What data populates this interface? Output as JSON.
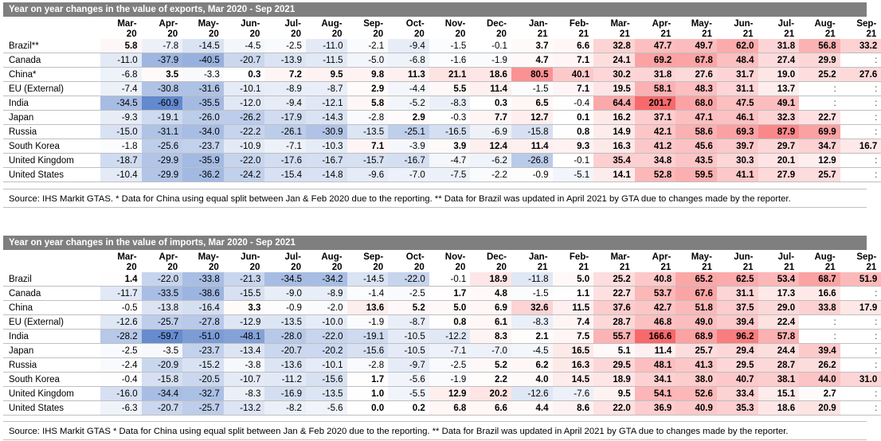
{
  "columns": [
    "Mar-\n20",
    "Apr-\n20",
    "May-\n20",
    "Jun-\n20",
    "Jul-\n20",
    "Aug-\n20",
    "Sep-\n20",
    "Oct-\n20",
    "Nov-\n20",
    "Dec-\n20",
    "Jan-\n21",
    "Feb-\n21",
    "Mar-\n21",
    "Apr-\n21",
    "May-\n21",
    "Jun-\n21",
    "Jul-\n21",
    "Aug-\n21",
    "Sep-\n21"
  ],
  "exports": {
    "title": "Year on year changes in the value of exports, Mar 2020 - Sep 2021",
    "source": "Source: IHS Markit GTAS. * Data for China using equal split between Jan & Feb 2020 due to the reporting. ** Data for Brazil was updated in April 2021 by GTA due to changes made by the reporter.",
    "rows": [
      {
        "country": "Brazil**",
        "values": [
          "5.8",
          "-7.8",
          "-14.5",
          "-4.5",
          "-2.5",
          "-11.0",
          "-2.1",
          "-9.4",
          "-1.5",
          "-0.1",
          "3.7",
          "6.6",
          "32.8",
          "47.7",
          "49.7",
          "62.0",
          "31.8",
          "56.8",
          "33.2"
        ]
      },
      {
        "country": "Canada",
        "values": [
          "-11.0",
          "-37.9",
          "-40.5",
          "-20.7",
          "-13.9",
          "-11.5",
          "-5.0",
          "-6.8",
          "-1.6",
          "-1.9",
          "4.7",
          "7.1",
          "24.1",
          "69.2",
          "67.8",
          "48.4",
          "27.4",
          "29.9",
          ":"
        ]
      },
      {
        "country": "China*",
        "values": [
          "-6.8",
          "3.5",
          "-3.3",
          "0.3",
          "7.2",
          "9.5",
          "9.8",
          "11.3",
          "21.1",
          "18.6",
          "80.5",
          "40.1",
          "30.2",
          "31.8",
          "27.6",
          "31.7",
          "19.0",
          "25.2",
          "27.6"
        ]
      },
      {
        "country": "EU (External)",
        "values": [
          "-7.4",
          "-30.8",
          "-31.6",
          "-10.1",
          "-8.9",
          "-8.7",
          "2.9",
          "-4.4",
          "5.5",
          "11.4",
          "-1.5",
          "7.1",
          "19.5",
          "58.1",
          "48.3",
          "31.1",
          "13.7",
          ":",
          ":"
        ]
      },
      {
        "country": "India",
        "values": [
          "-34.5",
          "-60.9",
          "-35.5",
          "-12.0",
          "-9.4",
          "-12.1",
          "5.8",
          "-5.2",
          "-8.3",
          "0.3",
          "6.5",
          "-0.4",
          "64.4",
          "201.7",
          "68.0",
          "47.5",
          "49.1",
          ":",
          ":"
        ]
      },
      {
        "country": "Japan",
        "values": [
          "-9.3",
          "-19.1",
          "-26.0",
          "-26.2",
          "-17.9",
          "-14.3",
          "-2.8",
          "2.9",
          "-0.3",
          "7.7",
          "12.7",
          "0.1",
          "16.2",
          "37.1",
          "47.1",
          "46.1",
          "32.3",
          "22.7",
          ":"
        ]
      },
      {
        "country": "Russia",
        "values": [
          "-15.0",
          "-31.1",
          "-34.0",
          "-22.2",
          "-26.1",
          "-30.9",
          "-13.5",
          "-25.1",
          "-16.5",
          "-6.9",
          "-15.8",
          "0.8",
          "14.9",
          "42.1",
          "58.6",
          "69.3",
          "87.9",
          "69.9",
          ":"
        ]
      },
      {
        "country": "South Korea",
        "values": [
          "-1.8",
          "-25.6",
          "-23.7",
          "-10.9",
          "-7.1",
          "-10.3",
          "7.1",
          "-3.9",
          "3.9",
          "12.4",
          "11.4",
          "9.3",
          "16.3",
          "41.2",
          "45.6",
          "39.7",
          "29.7",
          "34.7",
          "16.7"
        ]
      },
      {
        "country": "United Kingdom",
        "values": [
          "-18.7",
          "-29.9",
          "-35.9",
          "-22.0",
          "-17.6",
          "-16.7",
          "-15.7",
          "-16.7",
          "-4.7",
          "-6.2",
          "-26.8",
          "-0.1",
          "35.4",
          "34.8",
          "43.5",
          "30.3",
          "20.1",
          "12.9",
          ":"
        ]
      },
      {
        "country": "United States",
        "values": [
          "-10.4",
          "-29.9",
          "-36.2",
          "-24.2",
          "-15.4",
          "-14.8",
          "-9.6",
          "-7.0",
          "-7.5",
          "-2.2",
          "-0.9",
          "-5.1",
          "14.1",
          "52.8",
          "59.5",
          "41.1",
          "27.9",
          "25.7",
          ":"
        ]
      }
    ]
  },
  "imports": {
    "title": "Year on year changes in the value of imports, Mar 2020 - Sep 2021",
    "source": "Source: IHS Markit GTAS * Data for China using equal split between Jan & Feb 2020 due to the reporting. ** Data for Brazil was updated in April 2021 by GTA due to changes made by the reporter.",
    "rows": [
      {
        "country": "Brazil",
        "values": [
          "1.4",
          "-22.0",
          "-33.8",
          "-21.3",
          "-34.5",
          "-34.2",
          "-14.5",
          "-22.0",
          "-0.1",
          "18.9",
          "-11.8",
          "5.0",
          "25.2",
          "40.8",
          "65.2",
          "62.5",
          "53.4",
          "68.7",
          "51.9"
        ]
      },
      {
        "country": "Canada",
        "values": [
          "-11.7",
          "-33.5",
          "-38.6",
          "-15.5",
          "-9.0",
          "-8.9",
          "-1.4",
          "-2.5",
          "1.7",
          "4.8",
          "-1.5",
          "1.1",
          "22.7",
          "53.7",
          "67.6",
          "31.1",
          "17.3",
          "16.6",
          ":"
        ]
      },
      {
        "country": "China",
        "values": [
          "-0.5",
          "-13.8",
          "-16.4",
          "3.3",
          "-0.9",
          "-2.0",
          "13.6",
          "5.2",
          "5.0",
          "6.9",
          "32.6",
          "11.5",
          "37.6",
          "42.7",
          "51.8",
          "37.5",
          "29.0",
          "33.8",
          "17.9"
        ]
      },
      {
        "country": "EU (External)",
        "values": [
          "-12.6",
          "-25.7",
          "-27.8",
          "-12.9",
          "-13.5",
          "-10.0",
          "-1.9",
          "-8.7",
          "0.8",
          "6.1",
          "-8.3",
          "7.4",
          "28.7",
          "46.8",
          "49.0",
          "39.4",
          "22.4",
          ":",
          ":"
        ]
      },
      {
        "country": "India",
        "values": [
          "-28.2",
          "-59.7",
          "-51.0",
          "-48.1",
          "-28.0",
          "-22.0",
          "-19.1",
          "-10.5",
          "-12.2",
          "8.3",
          "2.1",
          "7.5",
          "55.7",
          "166.6",
          "68.9",
          "96.2",
          "57.8",
          ":",
          ":"
        ]
      },
      {
        "country": "Japan",
        "values": [
          "-2.5",
          "-3.5",
          "-23.7",
          "-13.4",
          "-20.7",
          "-20.2",
          "-15.6",
          "-10.5",
          "-7.1",
          "-7.0",
          "-4.5",
          "16.5",
          "5.1",
          "11.4",
          "25.7",
          "29.4",
          "24.4",
          "39.4",
          ":"
        ]
      },
      {
        "country": "Russia",
        "values": [
          "-2.4",
          "-20.9",
          "-15.2",
          "-3.8",
          "-13.6",
          "-10.1",
          "-2.8",
          "-9.7",
          "-2.5",
          "5.2",
          "6.2",
          "16.3",
          "29.5",
          "48.1",
          "41.3",
          "29.5",
          "28.7",
          "26.2",
          ":"
        ]
      },
      {
        "country": "South Korea",
        "values": [
          "-0.4",
          "-15.8",
          "-20.5",
          "-10.7",
          "-11.2",
          "-15.6",
          "1.7",
          "-5.6",
          "-1.9",
          "2.2",
          "4.0",
          "14.5",
          "18.9",
          "34.1",
          "38.0",
          "40.7",
          "38.1",
          "44.0",
          "31.0"
        ]
      },
      {
        "country": "United Kingdom",
        "values": [
          "-16.0",
          "-34.4",
          "-32.7",
          "-8.3",
          "-16.9",
          "-13.5",
          "1.0",
          "-5.5",
          "12.9",
          "20.2",
          "-12.6",
          "-7.6",
          "9.5",
          "54.1",
          "52.6",
          "33.4",
          "15.1",
          "2.7",
          ":"
        ]
      },
      {
        "country": "United States",
        "values": [
          "-6.3",
          "-20.7",
          "-25.7",
          "-13.2",
          "-8.2",
          "-5.6",
          "0.0",
          "0.2",
          "6.8",
          "6.6",
          "4.4",
          "8.6",
          "22.0",
          "36.9",
          "40.9",
          "35.3",
          "18.6",
          "20.9",
          ":"
        ]
      }
    ]
  },
  "colors": {
    "title_bg": "#7f7f7f",
    "negative": "#4472c4",
    "positive": "#f8696b"
  }
}
